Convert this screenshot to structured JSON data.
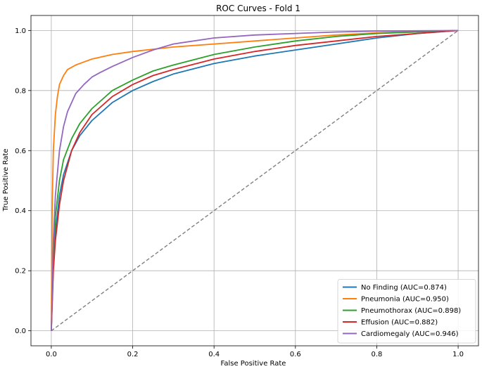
{
  "chart_data": {
    "type": "line",
    "title": "ROC Curves - Fold 1",
    "xlabel": "False Positive Rate",
    "ylabel": "True Positive Rate",
    "xlim": [
      -0.05,
      1.05
    ],
    "ylim": [
      -0.05,
      1.05
    ],
    "x_ticks": [
      "0.0",
      "0.2",
      "0.4",
      "0.6",
      "0.8",
      "1.0"
    ],
    "y_ticks": [
      "0.0",
      "0.2",
      "0.4",
      "0.6",
      "0.8",
      "1.0"
    ],
    "grid": true,
    "legend_position": "lower-right",
    "diagonal": {
      "x": [
        0,
        1
      ],
      "y": [
        0,
        1
      ],
      "color": "#7f7f7f",
      "style": "dashed"
    },
    "series": [
      {
        "name": "No Finding (AUC=0.874)",
        "color": "#1f77b4",
        "x": [
          0,
          0.005,
          0.01,
          0.02,
          0.03,
          0.05,
          0.07,
          0.1,
          0.15,
          0.2,
          0.25,
          0.3,
          0.4,
          0.5,
          0.6,
          0.7,
          0.8,
          0.9,
          1.0
        ],
        "y": [
          0,
          0.22,
          0.33,
          0.45,
          0.52,
          0.6,
          0.65,
          0.7,
          0.76,
          0.8,
          0.83,
          0.855,
          0.89,
          0.915,
          0.935,
          0.955,
          0.975,
          0.99,
          1.0
        ]
      },
      {
        "name": "Pneumonia (AUC=0.950)",
        "color": "#ff7f0e",
        "x": [
          0,
          0.002,
          0.005,
          0.01,
          0.015,
          0.02,
          0.03,
          0.04,
          0.06,
          0.08,
          0.1,
          0.15,
          0.2,
          0.3,
          0.4,
          0.5,
          0.6,
          0.7,
          0.8,
          0.9,
          1.0
        ],
        "y": [
          0,
          0.4,
          0.6,
          0.72,
          0.78,
          0.82,
          0.85,
          0.87,
          0.885,
          0.895,
          0.905,
          0.92,
          0.93,
          0.945,
          0.955,
          0.965,
          0.975,
          0.985,
          0.992,
          0.997,
          1.0
        ]
      },
      {
        "name": "Pneumothorax (AUC=0.898)",
        "color": "#2ca02c",
        "x": [
          0,
          0.005,
          0.01,
          0.02,
          0.03,
          0.05,
          0.07,
          0.1,
          0.15,
          0.2,
          0.25,
          0.3,
          0.4,
          0.5,
          0.6,
          0.7,
          0.8,
          0.9,
          1.0
        ],
        "y": [
          0,
          0.25,
          0.38,
          0.5,
          0.57,
          0.64,
          0.69,
          0.74,
          0.8,
          0.835,
          0.865,
          0.885,
          0.92,
          0.945,
          0.965,
          0.98,
          0.99,
          0.995,
          1.0
        ]
      },
      {
        "name": "Effusion (AUC=0.882)",
        "color": "#d62728",
        "x": [
          0,
          0.005,
          0.01,
          0.02,
          0.03,
          0.05,
          0.07,
          0.1,
          0.15,
          0.2,
          0.25,
          0.3,
          0.4,
          0.5,
          0.6,
          0.7,
          0.8,
          0.9,
          1.0
        ],
        "y": [
          0,
          0.2,
          0.3,
          0.42,
          0.5,
          0.6,
          0.66,
          0.72,
          0.78,
          0.82,
          0.85,
          0.87,
          0.905,
          0.93,
          0.95,
          0.965,
          0.98,
          0.99,
          1.0
        ]
      },
      {
        "name": "Cardiomegaly (AUC=0.946)",
        "color": "#9467bd",
        "x": [
          0,
          0.005,
          0.01,
          0.02,
          0.03,
          0.04,
          0.06,
          0.08,
          0.1,
          0.12,
          0.15,
          0.2,
          0.25,
          0.3,
          0.4,
          0.5,
          0.6,
          0.7,
          0.8,
          0.9,
          1.0
        ],
        "y": [
          0,
          0.3,
          0.45,
          0.6,
          0.68,
          0.73,
          0.79,
          0.82,
          0.845,
          0.86,
          0.88,
          0.91,
          0.935,
          0.955,
          0.975,
          0.985,
          0.99,
          0.995,
          0.998,
          0.999,
          1.0
        ]
      }
    ]
  }
}
